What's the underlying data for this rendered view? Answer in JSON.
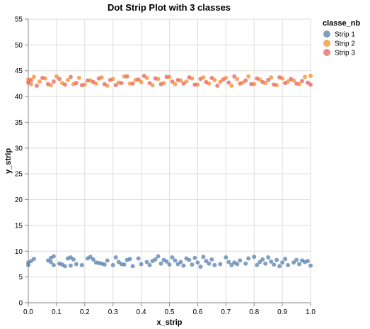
{
  "chart_data": {
    "type": "scatter",
    "title": "Dot Strip Plot with 3 classes",
    "xlabel": "x_strip",
    "ylabel": "y_strip",
    "xlim": [
      0,
      1
    ],
    "ylim": [
      0,
      55
    ],
    "x_ticks": [
      "0.0",
      "0.1",
      "0.2",
      "0.3",
      "0.4",
      "0.5",
      "0.6",
      "0.7",
      "0.8",
      "0.9",
      "1.0"
    ],
    "y_ticks": [
      "0",
      "5",
      "10",
      "15",
      "20",
      "25",
      "30",
      "35",
      "40",
      "45",
      "50",
      "55"
    ],
    "grid": true,
    "legend": {
      "title": "classe_nb",
      "placement": "top-right"
    },
    "series": [
      {
        "name": "Strip 1",
        "color": "#4c78a8",
        "points": [
          [
            0.0,
            7.8
          ],
          [
            0.0,
            7.3
          ],
          [
            0.01,
            8.1
          ],
          [
            0.02,
            8.5
          ],
          [
            0.07,
            8.2
          ],
          [
            0.08,
            8.7
          ],
          [
            0.08,
            7.9
          ],
          [
            0.09,
            9.0
          ],
          [
            0.09,
            7.3
          ],
          [
            0.11,
            7.6
          ],
          [
            0.12,
            7.4
          ],
          [
            0.13,
            7.1
          ],
          [
            0.14,
            8.6
          ],
          [
            0.15,
            8.8
          ],
          [
            0.15,
            7.2
          ],
          [
            0.16,
            8.4
          ],
          [
            0.17,
            7.5
          ],
          [
            0.19,
            7.3
          ],
          [
            0.21,
            8.6
          ],
          [
            0.22,
            8.9
          ],
          [
            0.23,
            8.4
          ],
          [
            0.24,
            7.8
          ],
          [
            0.25,
            7.7
          ],
          [
            0.26,
            7.6
          ],
          [
            0.27,
            7.4
          ],
          [
            0.28,
            8.2
          ],
          [
            0.3,
            7.3
          ],
          [
            0.31,
            8.8
          ],
          [
            0.32,
            7.9
          ],
          [
            0.33,
            7.5
          ],
          [
            0.34,
            7.4
          ],
          [
            0.35,
            8.3
          ],
          [
            0.36,
            8.5
          ],
          [
            0.37,
            7.1
          ],
          [
            0.39,
            8.6
          ],
          [
            0.4,
            7.5
          ],
          [
            0.42,
            7.9
          ],
          [
            0.43,
            7.3
          ],
          [
            0.44,
            8.1
          ],
          [
            0.45,
            8.4
          ],
          [
            0.46,
            9.0
          ],
          [
            0.47,
            7.6
          ],
          [
            0.48,
            8.3
          ],
          [
            0.49,
            8.0
          ],
          [
            0.5,
            7.4
          ],
          [
            0.51,
            8.8
          ],
          [
            0.52,
            8.2
          ],
          [
            0.53,
            7.5
          ],
          [
            0.54,
            7.9
          ],
          [
            0.55,
            7.2
          ],
          [
            0.56,
            8.6
          ],
          [
            0.57,
            8.3
          ],
          [
            0.58,
            7.4
          ],
          [
            0.59,
            8.7
          ],
          [
            0.6,
            7.8
          ],
          [
            0.61,
            7.0
          ],
          [
            0.62,
            8.9
          ],
          [
            0.63,
            8.1
          ],
          [
            0.64,
            7.6
          ],
          [
            0.65,
            8.4
          ],
          [
            0.66,
            7.3
          ],
          [
            0.68,
            7.5
          ],
          [
            0.7,
            8.8
          ],
          [
            0.71,
            7.9
          ],
          [
            0.72,
            7.3
          ],
          [
            0.73,
            7.8
          ],
          [
            0.74,
            7.5
          ],
          [
            0.75,
            8.2
          ],
          [
            0.77,
            7.6
          ],
          [
            0.78,
            8.6
          ],
          [
            0.8,
            8.9
          ],
          [
            0.81,
            7.3
          ],
          [
            0.82,
            7.9
          ],
          [
            0.83,
            8.4
          ],
          [
            0.84,
            7.6
          ],
          [
            0.85,
            8.8
          ],
          [
            0.86,
            8.0
          ],
          [
            0.87,
            7.4
          ],
          [
            0.88,
            8.3
          ],
          [
            0.89,
            7.1
          ],
          [
            0.9,
            7.8
          ],
          [
            0.91,
            8.5
          ],
          [
            0.92,
            7.3
          ],
          [
            0.94,
            7.8
          ],
          [
            0.95,
            8.3
          ],
          [
            0.96,
            7.5
          ],
          [
            0.97,
            8.2
          ],
          [
            0.98,
            7.9
          ],
          [
            0.99,
            8.1
          ],
          [
            1.0,
            7.2
          ]
        ]
      },
      {
        "name": "Strip 2",
        "color": "#f58518",
        "points": [
          [
            0.0,
            43.3
          ],
          [
            0.01,
            42.4
          ],
          [
            0.02,
            43.8
          ],
          [
            0.04,
            42.9
          ],
          [
            0.06,
            43.5
          ],
          [
            0.08,
            42.2
          ],
          [
            0.1,
            43.9
          ],
          [
            0.12,
            42.6
          ],
          [
            0.14,
            43.2
          ],
          [
            0.16,
            42.4
          ],
          [
            0.18,
            43.6
          ],
          [
            0.2,
            42.3
          ],
          [
            0.22,
            43.1
          ],
          [
            0.24,
            42.5
          ],
          [
            0.26,
            43.7
          ],
          [
            0.28,
            42.1
          ],
          [
            0.3,
            43.4
          ],
          [
            0.32,
            42.7
          ],
          [
            0.34,
            43.9
          ],
          [
            0.36,
            42.5
          ],
          [
            0.38,
            43.2
          ],
          [
            0.4,
            42.8
          ],
          [
            0.42,
            43.6
          ],
          [
            0.44,
            42.2
          ],
          [
            0.46,
            43.4
          ],
          [
            0.48,
            42.6
          ],
          [
            0.5,
            43.8
          ],
          [
            0.52,
            42.4
          ],
          [
            0.54,
            43.1
          ],
          [
            0.56,
            42.9
          ],
          [
            0.58,
            43.5
          ],
          [
            0.6,
            42.3
          ],
          [
            0.62,
            43.7
          ],
          [
            0.64,
            42.5
          ],
          [
            0.66,
            43.2
          ],
          [
            0.68,
            42.8
          ],
          [
            0.7,
            43.6
          ],
          [
            0.72,
            42.1
          ],
          [
            0.74,
            43.4
          ],
          [
            0.76,
            42.7
          ],
          [
            0.78,
            43.9
          ],
          [
            0.8,
            42.4
          ],
          [
            0.82,
            43.3
          ],
          [
            0.84,
            42.6
          ],
          [
            0.86,
            43.7
          ],
          [
            0.88,
            42.2
          ],
          [
            0.9,
            43.5
          ],
          [
            0.92,
            42.9
          ],
          [
            0.94,
            43.1
          ],
          [
            0.96,
            42.4
          ],
          [
            0.98,
            43.8
          ],
          [
            1.0,
            44.0
          ]
        ]
      },
      {
        "name": "Strip 3",
        "color": "#e45756",
        "points": [
          [
            0.0,
            42.7
          ],
          [
            0.01,
            43.2
          ],
          [
            0.03,
            42.1
          ],
          [
            0.05,
            43.6
          ],
          [
            0.07,
            42.4
          ],
          [
            0.09,
            42.9
          ],
          [
            0.11,
            43.4
          ],
          [
            0.13,
            42.3
          ],
          [
            0.15,
            43.8
          ],
          [
            0.17,
            42.6
          ],
          [
            0.19,
            42.2
          ],
          [
            0.21,
            43.1
          ],
          [
            0.23,
            42.8
          ],
          [
            0.25,
            43.5
          ],
          [
            0.27,
            42.4
          ],
          [
            0.29,
            43.2
          ],
          [
            0.31,
            42.2
          ],
          [
            0.33,
            42.6
          ],
          [
            0.35,
            43.9
          ],
          [
            0.37,
            42.5
          ],
          [
            0.39,
            43.3
          ],
          [
            0.41,
            44.0
          ],
          [
            0.43,
            42.6
          ],
          [
            0.45,
            43.5
          ],
          [
            0.47,
            42.4
          ],
          [
            0.49,
            43.8
          ],
          [
            0.51,
            42.9
          ],
          [
            0.53,
            43.2
          ],
          [
            0.55,
            42.5
          ],
          [
            0.57,
            43.7
          ],
          [
            0.59,
            42.3
          ],
          [
            0.61,
            43.4
          ],
          [
            0.63,
            42.8
          ],
          [
            0.65,
            43.6
          ],
          [
            0.67,
            42.1
          ],
          [
            0.69,
            43.3
          ],
          [
            0.71,
            42.7
          ],
          [
            0.73,
            43.9
          ],
          [
            0.75,
            42.5
          ],
          [
            0.77,
            43.1
          ],
          [
            0.79,
            42.4
          ],
          [
            0.81,
            43.5
          ],
          [
            0.83,
            42.8
          ],
          [
            0.85,
            43.2
          ],
          [
            0.87,
            42.3
          ],
          [
            0.89,
            43.7
          ],
          [
            0.91,
            42.6
          ],
          [
            0.93,
            43.4
          ],
          [
            0.95,
            42.5
          ],
          [
            0.97,
            43.0
          ],
          [
            0.99,
            42.7
          ],
          [
            1.0,
            42.3
          ]
        ]
      }
    ]
  }
}
